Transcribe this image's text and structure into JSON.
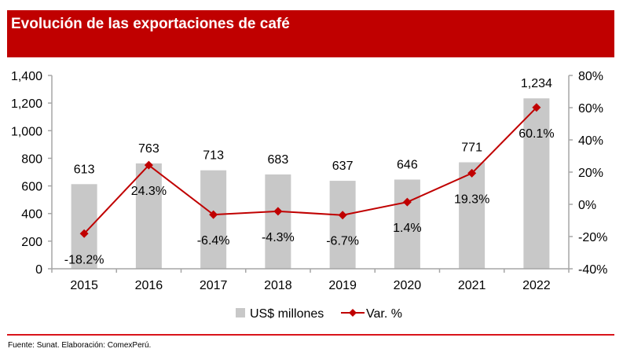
{
  "header": {
    "title": "Evolución de las exportaciones de café"
  },
  "footer": {
    "source": "Fuente: Sunat. Elaboración: ComexPerú."
  },
  "colors": {
    "banner": "#c00000",
    "bar": "#c8c8c8",
    "line": "#c00000",
    "axis": "#a6a6a6",
    "footer_rule": "#d9141b"
  },
  "chart_data": {
    "type": "bar+line",
    "title": "Evolución de las exportaciones de café",
    "categories": [
      "2015",
      "2016",
      "2017",
      "2018",
      "2019",
      "2020",
      "2021",
      "2022"
    ],
    "series": [
      {
        "name": "US$ millones",
        "type": "bar",
        "axis": "left",
        "values": [
          613,
          763,
          713,
          683,
          637,
          646,
          771,
          1234
        ],
        "labels": [
          "613",
          "763",
          "713",
          "683",
          "637",
          "646",
          "771",
          "1,234"
        ]
      },
      {
        "name": "Var. %",
        "type": "line",
        "axis": "right",
        "marker": "diamond",
        "values": [
          -18.2,
          24.3,
          -6.4,
          -4.3,
          -6.7,
          1.4,
          19.3,
          60.1
        ],
        "labels": [
          "-18.2%",
          "24.3%",
          "-6.4%",
          "-4.3%",
          "-6.7%",
          "1.4%",
          "19.3%",
          "60.1%"
        ]
      }
    ],
    "left_axis": {
      "ylim": [
        0,
        1400
      ],
      "ticks": [
        0,
        200,
        400,
        600,
        800,
        1000,
        1200,
        1400
      ],
      "tick_labels": [
        "0",
        "200",
        "400",
        "600",
        "800",
        "1,000",
        "1,200",
        "1,400"
      ]
    },
    "right_axis": {
      "ylim": [
        -40,
        80
      ],
      "ticks": [
        -40,
        -20,
        0,
        20,
        40,
        60,
        80
      ],
      "tick_labels": [
        "-40%",
        "-20%",
        "0%",
        "20%",
        "40%",
        "60%",
        "80%"
      ]
    },
    "xlabel": "",
    "ylabel": "",
    "grid": false,
    "legend": {
      "position": "bottom",
      "entries": [
        "US$ millones",
        "Var. %"
      ]
    }
  }
}
